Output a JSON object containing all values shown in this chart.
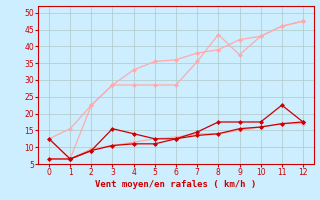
{
  "xlabel": "Vent moyen/en rafales ( km/h )",
  "xlabel_color": "#cc0000",
  "background_color": "#cceeff",
  "grid_color": "#b0c8c8",
  "xlim": [
    -0.5,
    12.5
  ],
  "ylim": [
    5,
    52
  ],
  "xticks": [
    0,
    1,
    2,
    3,
    4,
    5,
    6,
    7,
    8,
    9,
    10,
    11,
    12
  ],
  "yticks": [
    5,
    10,
    15,
    20,
    25,
    30,
    35,
    40,
    45,
    50
  ],
  "series": [
    {
      "x": [
        0,
        1,
        2,
        3,
        4,
        5,
        6,
        7,
        8,
        9,
        10,
        11,
        12
      ],
      "y": [
        12.5,
        6.5,
        22.5,
        28.5,
        28.5,
        28.5,
        28.5,
        35.5,
        43.5,
        37.5,
        43,
        46,
        47.5
      ],
      "color": "#ffaaaa",
      "marker": "D",
      "markersize": 2,
      "linewidth": 0.9
    },
    {
      "x": [
        0,
        1,
        2,
        3,
        4,
        5,
        6,
        7,
        8,
        9,
        10,
        11,
        12
      ],
      "y": [
        12.5,
        15.5,
        22.5,
        28.5,
        33,
        35.5,
        36,
        38,
        39,
        42,
        43,
        46,
        47.5
      ],
      "color": "#ffaaaa",
      "marker": "D",
      "markersize": 2,
      "linewidth": 0.9
    },
    {
      "x": [
        0,
        1,
        2,
        3,
        4,
        5,
        6,
        7,
        8,
        9,
        10,
        11,
        12
      ],
      "y": [
        6.5,
        6.5,
        9.5,
        10.5,
        11.5,
        12.5,
        13,
        14,
        14,
        15,
        16,
        17,
        17
      ],
      "color": "#ffaaaa",
      "marker": "D",
      "markersize": 2,
      "linewidth": 0.9
    },
    {
      "x": [
        0,
        1,
        2,
        3,
        4,
        5,
        6,
        7,
        8,
        9,
        10,
        11,
        12
      ],
      "y": [
        12.5,
        6.5,
        9,
        15.5,
        14,
        12.5,
        12.5,
        14.5,
        17.5,
        17.5,
        17.5,
        22.5,
        17.5
      ],
      "color": "#cc0000",
      "marker": "D",
      "markersize": 2,
      "linewidth": 0.9
    },
    {
      "x": [
        0,
        1,
        2,
        3,
        4,
        5,
        6,
        7,
        8,
        9,
        10,
        11,
        12
      ],
      "y": [
        6.5,
        6.5,
        9,
        10.5,
        11,
        11,
        12.5,
        13.5,
        14,
        15.5,
        16,
        17,
        17.5
      ],
      "color": "#cc0000",
      "marker": "D",
      "markersize": 2,
      "linewidth": 0.9
    }
  ]
}
